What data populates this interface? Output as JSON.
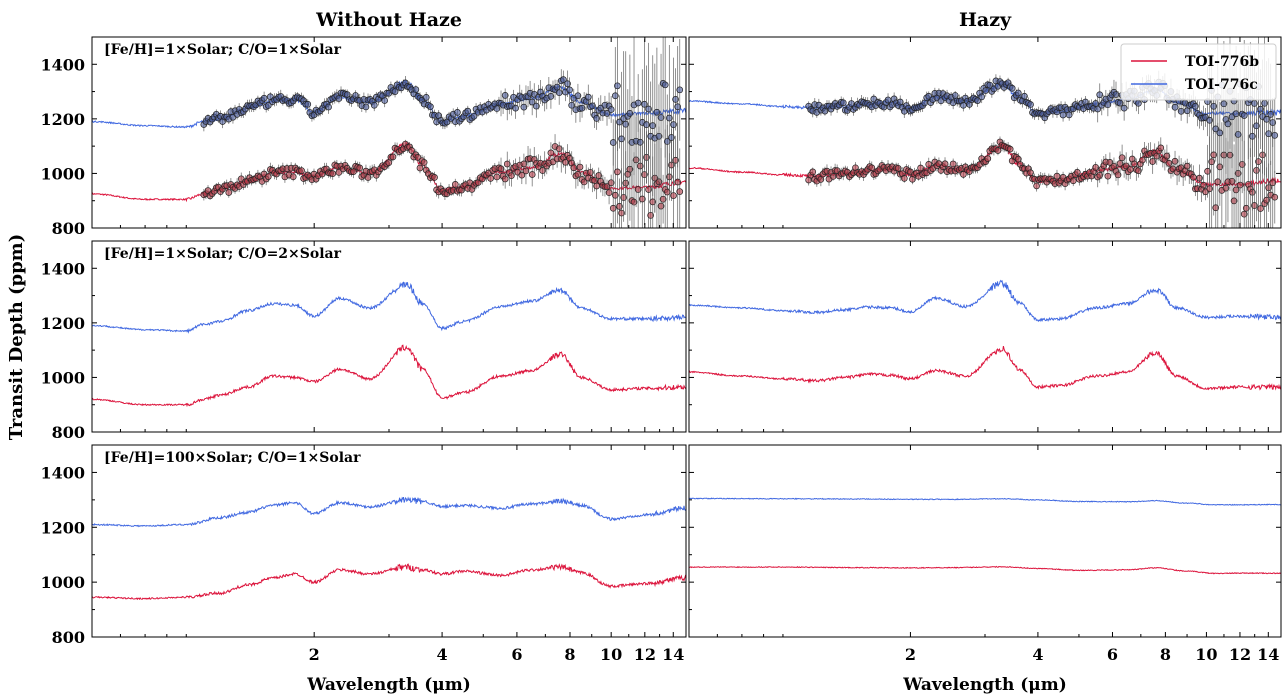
{
  "chart_data": {
    "type": "line",
    "column_titles": [
      "Without Haze",
      "Hazy"
    ],
    "ylabel": "Transit Depth (ppm)",
    "xlabel": "Wavelength (μm)",
    "x_scale": "log",
    "xlim": [
      0.6,
      15
    ],
    "ylim": [
      800,
      1500
    ],
    "y_ticks": [
      800,
      1000,
      1200,
      1400
    ],
    "x_ticks": [
      2,
      4,
      6,
      8,
      10,
      12,
      14
    ],
    "x_tick_labels": [
      "2",
      "4",
      "6",
      "8",
      "10",
      "12",
      "14"
    ],
    "legend": {
      "position": "top-right",
      "entries": [
        "TOI-776b",
        "TOI-776c"
      ]
    },
    "colors": {
      "TOI-776b": "#dc143c",
      "TOI-776c": "#4169e1",
      "data_b": "#b23a48",
      "data_c": "#4a5a9a"
    },
    "row_labels": [
      "[Fe/H]=1×Solar; C/O=1×Solar",
      "[Fe/H]=1×Solar; C/O=2×Solar",
      "[Fe/H]=100×Solar; C/O=1×Solar"
    ],
    "panels": [
      {
        "row": 0,
        "col": 0,
        "observations": true,
        "series": [
          {
            "name": "TOI-776b",
            "x": [
              0.6,
              0.8,
              1.0,
              1.1,
              1.2,
              1.4,
              1.6,
              1.8,
              2.0,
              2.3,
              2.7,
              3.3,
              3.6,
              4.0,
              4.5,
              5.5,
              6.5,
              7.6,
              8.5,
              10.0,
              12.0,
              15.0
            ],
            "y": [
              925,
              905,
              905,
              925,
              940,
              970,
              1000,
              1005,
              990,
              1020,
              1000,
              1105,
              1030,
              940,
              950,
              1005,
              1020,
              1075,
              1005,
              945,
              950,
              970
            ]
          },
          {
            "name": "TOI-776c",
            "x": [
              0.6,
              0.8,
              1.0,
              1.1,
              1.2,
              1.4,
              1.6,
              1.8,
              2.0,
              2.3,
              2.7,
              3.3,
              3.6,
              4.0,
              4.5,
              5.5,
              6.5,
              7.6,
              8.5,
              10.0,
              12.0,
              15.0
            ],
            "y": [
              1190,
              1175,
              1170,
              1190,
              1200,
              1240,
              1265,
              1270,
              1225,
              1280,
              1260,
              1330,
              1270,
              1190,
              1210,
              1255,
              1275,
              1315,
              1260,
              1215,
              1220,
              1230
            ]
          }
        ]
      },
      {
        "row": 0,
        "col": 1,
        "observations": true,
        "series": [
          {
            "name": "TOI-776b",
            "x": [
              0.6,
              0.8,
              1.0,
              1.2,
              1.4,
              1.6,
              1.8,
              2.0,
              2.3,
              2.7,
              3.3,
              3.6,
              4.0,
              4.5,
              5.5,
              6.5,
              7.6,
              8.5,
              10.0,
              12.0,
              15.0
            ],
            "y": [
              1020,
              1005,
              995,
              990,
              1000,
              1010,
              1015,
              995,
              1030,
              1010,
              1100,
              1040,
              970,
              975,
              1010,
              1025,
              1080,
              1010,
              960,
              960,
              975
            ]
          },
          {
            "name": "TOI-776c",
            "x": [
              0.6,
              0.8,
              1.0,
              1.2,
              1.4,
              1.6,
              1.8,
              2.0,
              2.3,
              2.7,
              3.3,
              3.6,
              4.0,
              4.5,
              5.5,
              6.5,
              7.6,
              8.5,
              10.0,
              12.0,
              15.0
            ],
            "y": [
              1265,
              1255,
              1245,
              1240,
              1245,
              1255,
              1260,
              1240,
              1280,
              1265,
              1330,
              1280,
              1220,
              1225,
              1255,
              1270,
              1310,
              1260,
              1220,
              1220,
              1225
            ]
          }
        ]
      },
      {
        "row": 1,
        "col": 0,
        "observations": false,
        "series": [
          {
            "name": "TOI-776b",
            "x": [
              0.6,
              0.8,
              1.0,
              1.1,
              1.2,
              1.4,
              1.6,
              1.8,
              2.0,
              2.3,
              2.7,
              3.3,
              3.6,
              4.0,
              4.5,
              5.5,
              6.5,
              7.6,
              8.5,
              10.0,
              12.0,
              15.0
            ],
            "y": [
              920,
              900,
              900,
              920,
              935,
              965,
              1005,
              1000,
              985,
              1030,
              995,
              1110,
              1030,
              925,
              945,
              1005,
              1025,
              1085,
              1000,
              955,
              960,
              965
            ]
          },
          {
            "name": "TOI-776c",
            "x": [
              0.6,
              0.8,
              1.0,
              1.1,
              1.2,
              1.4,
              1.6,
              1.8,
              2.0,
              2.3,
              2.7,
              3.3,
              3.6,
              4.0,
              4.5,
              5.5,
              6.5,
              7.6,
              8.5,
              10.0,
              12.0,
              15.0
            ],
            "y": [
              1190,
              1175,
              1170,
              1195,
              1205,
              1245,
              1270,
              1265,
              1225,
              1290,
              1255,
              1340,
              1270,
              1180,
              1205,
              1260,
              1280,
              1320,
              1255,
              1215,
              1215,
              1220
            ]
          }
        ]
      },
      {
        "row": 1,
        "col": 1,
        "observations": false,
        "series": [
          {
            "name": "TOI-776b",
            "x": [
              0.6,
              0.8,
              1.0,
              1.2,
              1.4,
              1.6,
              1.8,
              2.0,
              2.3,
              2.7,
              3.3,
              3.6,
              4.0,
              4.5,
              5.5,
              6.5,
              7.6,
              8.5,
              10.0,
              12.0,
              15.0
            ],
            "y": [
              1020,
              1005,
              995,
              988,
              1000,
              1012,
              1008,
              995,
              1025,
              1005,
              1105,
              1030,
              965,
              970,
              1005,
              1020,
              1090,
              1005,
              960,
              965,
              965
            ]
          },
          {
            "name": "TOI-776c",
            "x": [
              0.6,
              0.8,
              1.0,
              1.2,
              1.4,
              1.6,
              1.8,
              2.0,
              2.3,
              2.7,
              3.3,
              3.6,
              4.0,
              4.5,
              5.5,
              6.5,
              7.6,
              8.5,
              10.0,
              12.0,
              15.0
            ],
            "y": [
              1265,
              1255,
              1245,
              1238,
              1248,
              1258,
              1255,
              1240,
              1290,
              1260,
              1345,
              1275,
              1210,
              1215,
              1255,
              1270,
              1320,
              1255,
              1220,
              1225,
              1220
            ]
          }
        ]
      },
      {
        "row": 2,
        "col": 0,
        "observations": false,
        "series": [
          {
            "name": "TOI-776b",
            "x": [
              0.6,
              0.8,
              1.0,
              1.2,
              1.4,
              1.6,
              1.8,
              2.0,
              2.3,
              2.7,
              3.3,
              3.6,
              4.0,
              4.5,
              5.5,
              6.5,
              7.6,
              8.5,
              10.0,
              12.0,
              15.0
            ],
            "y": [
              945,
              940,
              945,
              960,
              990,
              1015,
              1030,
              1000,
              1045,
              1030,
              1055,
              1045,
              1030,
              1040,
              1025,
              1045,
              1055,
              1035,
              985,
              995,
              1015
            ]
          },
          {
            "name": "TOI-776c",
            "x": [
              0.6,
              0.8,
              1.0,
              1.2,
              1.4,
              1.6,
              1.8,
              2.0,
              2.3,
              2.7,
              3.3,
              3.6,
              4.0,
              4.5,
              5.5,
              6.5,
              7.6,
              8.5,
              10.0,
              12.0,
              15.0
            ],
            "y": [
              1210,
              1205,
              1210,
              1235,
              1255,
              1280,
              1290,
              1250,
              1290,
              1275,
              1300,
              1295,
              1275,
              1280,
              1270,
              1285,
              1295,
              1280,
              1230,
              1245,
              1270
            ]
          }
        ]
      },
      {
        "row": 2,
        "col": 1,
        "observations": false,
        "series": [
          {
            "name": "TOI-776b",
            "x": [
              0.6,
              1.0,
              1.5,
              2.0,
              2.5,
              3.3,
              4.0,
              5.0,
              6.5,
              7.6,
              9.0,
              10.5,
              12.5,
              15.0
            ],
            "y": [
              1055,
              1055,
              1053,
              1052,
              1053,
              1056,
              1050,
              1043,
              1045,
              1052,
              1040,
              1032,
              1033,
              1032
            ]
          },
          {
            "name": "TOI-776c",
            "x": [
              0.6,
              1.0,
              1.5,
              2.0,
              2.5,
              3.3,
              4.0,
              5.0,
              6.5,
              7.6,
              9.0,
              10.5,
              12.5,
              15.0
            ],
            "y": [
              1305,
              1304,
              1303,
              1302,
              1302,
              1304,
              1300,
              1294,
              1293,
              1297,
              1288,
              1282,
              1282,
              1283
            ]
          }
        ]
      }
    ]
  }
}
